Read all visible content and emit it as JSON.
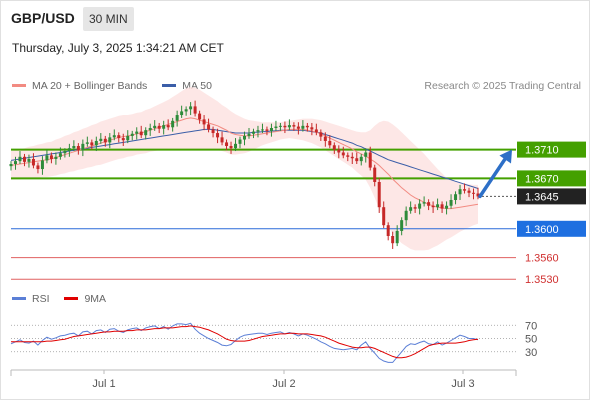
{
  "header": {
    "pair": "GBP/USD",
    "timeframe": "30 MIN"
  },
  "timestamp": "Thursday, July 3, 2025 1:34:21 AM CET",
  "legend": {
    "ma20_label": "MA 20 + Bollinger Bands",
    "ma50_label": "MA 50",
    "ma20_color": "#f28b82",
    "ma50_color": "#3b5ea8"
  },
  "copyright": "Research © 2025 Trading Central",
  "rsi_legend": {
    "rsi_label": "RSI",
    "ma9_label": "9MA",
    "rsi_color": "#5b7fd6",
    "ma9_color": "#e00000"
  },
  "chart_data": [
    {
      "type": "candlestick",
      "ylim": [
        1.3515,
        1.379
      ],
      "x_ticks": [
        "Jul 1",
        "Jul 2",
        "Jul 3"
      ],
      "levels": [
        {
          "value": "1.3710",
          "kind": "resistance",
          "color": "#44a000",
          "label_bg": "#44a000",
          "label_color": "#ffffff"
        },
        {
          "value": "1.3670",
          "kind": "resistance",
          "color": "#44a000",
          "label_bg": "#44a000",
          "label_color": "#ffffff"
        },
        {
          "value": "1.3645",
          "kind": "current",
          "color": "#555555",
          "label_bg": "#222222",
          "label_color": "#ffffff"
        },
        {
          "value": "1.3600",
          "kind": "pivot",
          "color": "#2a6ad9",
          "label_bg": "#1e6fe0",
          "label_color": "#ffffff"
        },
        {
          "value": "1.3560",
          "kind": "support",
          "color": "#e06060",
          "label_bg": "",
          "label_color": "#d03030"
        },
        {
          "value": "1.3530",
          "kind": "support",
          "color": "#e06060",
          "label_bg": "",
          "label_color": "#d03030"
        }
      ],
      "close": [
        1.369,
        1.3694,
        1.37,
        1.3693,
        1.3697,
        1.3688,
        1.3683,
        1.3695,
        1.3702,
        1.3697,
        1.37,
        1.3705,
        1.3708,
        1.3712,
        1.3715,
        1.3709,
        1.3718,
        1.372,
        1.3716,
        1.3722,
        1.3725,
        1.372,
        1.3727,
        1.373,
        1.3726,
        1.3723,
        1.3729,
        1.3732,
        1.3735,
        1.373,
        1.3737,
        1.374,
        1.3743,
        1.3739,
        1.3744,
        1.3741,
        1.375,
        1.3758,
        1.3763,
        1.3766,
        1.377,
        1.376,
        1.3752,
        1.3745,
        1.3738,
        1.3733,
        1.3727,
        1.372,
        1.3715,
        1.3712,
        1.3718,
        1.3724,
        1.3729,
        1.3732,
        1.3735,
        1.3737,
        1.3738,
        1.3736,
        1.374,
        1.3742,
        1.3743,
        1.3741,
        1.3744,
        1.3742,
        1.3739,
        1.3743,
        1.3741,
        1.3738,
        1.3734,
        1.3728,
        1.3722,
        1.3716,
        1.371,
        1.3706,
        1.3702,
        1.37,
        1.3698,
        1.3694,
        1.37,
        1.3706,
        1.3685,
        1.3665,
        1.363,
        1.3605,
        1.359,
        1.358,
        1.3597,
        1.3612,
        1.3625,
        1.363,
        1.3628,
        1.3635,
        1.3637,
        1.3632,
        1.363,
        1.3634,
        1.3628,
        1.3632,
        1.364,
        1.3648,
        1.3655,
        1.3653,
        1.365,
        1.3649,
        1.3645
      ],
      "ma50": [
        1.3695,
        1.3696,
        1.3697,
        1.3698,
        1.3699,
        1.37,
        1.3701,
        1.3702,
        1.3703,
        1.3704,
        1.3705,
        1.3706,
        1.3707,
        1.3708,
        1.3709,
        1.371,
        1.3711,
        1.3712,
        1.3713,
        1.3714,
        1.3715,
        1.3716,
        1.3717,
        1.3718,
        1.3719,
        1.372,
        1.3721,
        1.3722,
        1.3723,
        1.3724,
        1.3725,
        1.3726,
        1.3727,
        1.3728,
        1.3729,
        1.373,
        1.3731,
        1.3732,
        1.3733,
        1.3734,
        1.3735,
        1.3736,
        1.3737,
        1.3738,
        1.3738,
        1.3738,
        1.3737,
        1.3736,
        1.3735,
        1.3734,
        1.3733,
        1.3733,
        1.3733,
        1.3733,
        1.3734,
        1.3734,
        1.3735,
        1.3735,
        1.3736,
        1.3736,
        1.3737,
        1.3737,
        1.3737,
        1.3737,
        1.3737,
        1.3737,
        1.3736,
        1.3735,
        1.3734,
        1.3733,
        1.3731,
        1.3729,
        1.3727,
        1.3725,
        1.3723,
        1.3721,
        1.3719,
        1.3716,
        1.3714,
        1.3711,
        1.3708,
        1.3705,
        1.3702,
        1.3699,
        1.3696,
        1.3694,
        1.3692,
        1.369,
        1.3688,
        1.3686,
        1.3684,
        1.3682,
        1.368,
        1.3678,
        1.3676,
        1.3674,
        1.3672,
        1.367,
        1.3668,
        1.3666,
        1.3664,
        1.3662,
        1.366,
        1.3658,
        1.3656
      ],
      "ma20": [
        1.3688,
        1.3689,
        1.369,
        1.3691,
        1.3692,
        1.3693,
        1.3694,
        1.3695,
        1.3696,
        1.3697,
        1.3699,
        1.3701,
        1.3703,
        1.3705,
        1.3707,
        1.3709,
        1.3711,
        1.3713,
        1.3715,
        1.3717,
        1.3719,
        1.3721,
        1.3723,
        1.3725,
        1.3727,
        1.3728,
        1.3729,
        1.373,
        1.3732,
        1.3733,
        1.3735,
        1.3737,
        1.3739,
        1.3741,
        1.3743,
        1.3745,
        1.3747,
        1.3749,
        1.3751,
        1.3753,
        1.3754,
        1.3753,
        1.3751,
        1.3749,
        1.3747,
        1.3745,
        1.3743,
        1.374,
        1.3737,
        1.3733,
        1.3731,
        1.373,
        1.3729,
        1.3729,
        1.373,
        1.3731,
        1.3732,
        1.3733,
        1.3734,
        1.3735,
        1.3736,
        1.3737,
        1.3738,
        1.3738,
        1.3738,
        1.3738,
        1.3737,
        1.3736,
        1.3734,
        1.3732,
        1.3729,
        1.3726,
        1.3723,
        1.372,
        1.3717,
        1.3714,
        1.3711,
        1.3707,
        1.3704,
        1.3701,
        1.3697,
        1.3693,
        1.3688,
        1.3682,
        1.3676,
        1.3669,
        1.3663,
        1.3657,
        1.3652,
        1.3647,
        1.3643,
        1.364,
        1.3637,
        1.3634,
        1.3632,
        1.363,
        1.3629,
        1.3628,
        1.3628,
        1.3629,
        1.363,
        1.3631,
        1.3632,
        1.3633,
        1.3634
      ],
      "bb_width": [
        0.002,
        0.002,
        0.0021,
        0.0021,
        0.0022,
        0.0022,
        0.0023,
        0.0023,
        0.0024,
        0.0024,
        0.0025,
        0.0025,
        0.0026,
        0.0026,
        0.0027,
        0.0027,
        0.0028,
        0.0028,
        0.0029,
        0.0029,
        0.003,
        0.003,
        0.003,
        0.003,
        0.003,
        0.003,
        0.0029,
        0.0029,
        0.0029,
        0.0029,
        0.003,
        0.003,
        0.0031,
        0.0032,
        0.0033,
        0.0034,
        0.0036,
        0.0038,
        0.004,
        0.0042,
        0.0043,
        0.0043,
        0.0042,
        0.004,
        0.0038,
        0.0036,
        0.0034,
        0.0032,
        0.0031,
        0.003,
        0.0028,
        0.0026,
        0.0024,
        0.0022,
        0.002,
        0.0018,
        0.0016,
        0.0015,
        0.0014,
        0.0013,
        0.0012,
        0.0012,
        0.0012,
        0.0013,
        0.0014,
        0.0015,
        0.0016,
        0.0017,
        0.0018,
        0.0019,
        0.002,
        0.0021,
        0.0022,
        0.0023,
        0.0024,
        0.0025,
        0.0026,
        0.0028,
        0.003,
        0.0033,
        0.004,
        0.005,
        0.006,
        0.0068,
        0.0073,
        0.0076,
        0.0077,
        0.0077,
        0.0076,
        0.0075,
        0.0073,
        0.007,
        0.0067,
        0.0063,
        0.0058,
        0.0053,
        0.0048,
        0.0043,
        0.004,
        0.0037,
        0.0034,
        0.0032,
        0.003,
        0.0028,
        0.0027
      ],
      "forecast": {
        "from": "1.3645",
        "to": "1.3710"
      }
    },
    {
      "type": "line",
      "title": "RSI",
      "ylim": [
        10,
        90
      ],
      "y_ticks": [
        "70",
        "50",
        "30"
      ],
      "rsi": [
        42,
        45,
        48,
        44,
        43,
        46,
        40,
        47,
        52,
        49,
        51,
        54,
        55,
        57,
        58,
        54,
        60,
        61,
        57,
        62,
        63,
        59,
        64,
        65,
        61,
        59,
        63,
        65,
        66,
        62,
        66,
        68,
        69,
        65,
        68,
        64,
        69,
        72,
        72,
        71,
        73,
        64,
        58,
        54,
        50,
        47,
        44,
        40,
        39,
        41,
        47,
        52,
        55,
        56,
        57,
        58,
        58,
        56,
        58,
        59,
        60,
        57,
        59,
        57,
        54,
        57,
        55,
        52,
        49,
        45,
        42,
        38,
        35,
        34,
        33,
        34,
        35,
        33,
        40,
        45,
        35,
        28,
        20,
        16,
        14,
        14,
        22,
        30,
        38,
        42,
        41,
        44,
        46,
        42,
        41,
        45,
        40,
        43,
        47,
        51,
        55,
        53,
        50,
        50,
        48
      ],
      "ma9": [
        45,
        45,
        45,
        45,
        45,
        45,
        45,
        45,
        46,
        46,
        47,
        48,
        49,
        51,
        53,
        54,
        55,
        56,
        57,
        58,
        59,
        60,
        60,
        61,
        61,
        61,
        62,
        62,
        63,
        63,
        63,
        64,
        65,
        65,
        66,
        66,
        66,
        67,
        68,
        68,
        69,
        68,
        67,
        65,
        63,
        60,
        57,
        53,
        49,
        47,
        46,
        46,
        46,
        47,
        49,
        51,
        53,
        54,
        55,
        56,
        57,
        57,
        58,
        58,
        57,
        57,
        57,
        56,
        55,
        54,
        52,
        49,
        46,
        43,
        41,
        39,
        37,
        36,
        36,
        37,
        37,
        35,
        32,
        29,
        26,
        23,
        21,
        21,
        22,
        24,
        27,
        31,
        35,
        39,
        41,
        42,
        43,
        43,
        43,
        43,
        44,
        45,
        47,
        48,
        49
      ]
    }
  ]
}
